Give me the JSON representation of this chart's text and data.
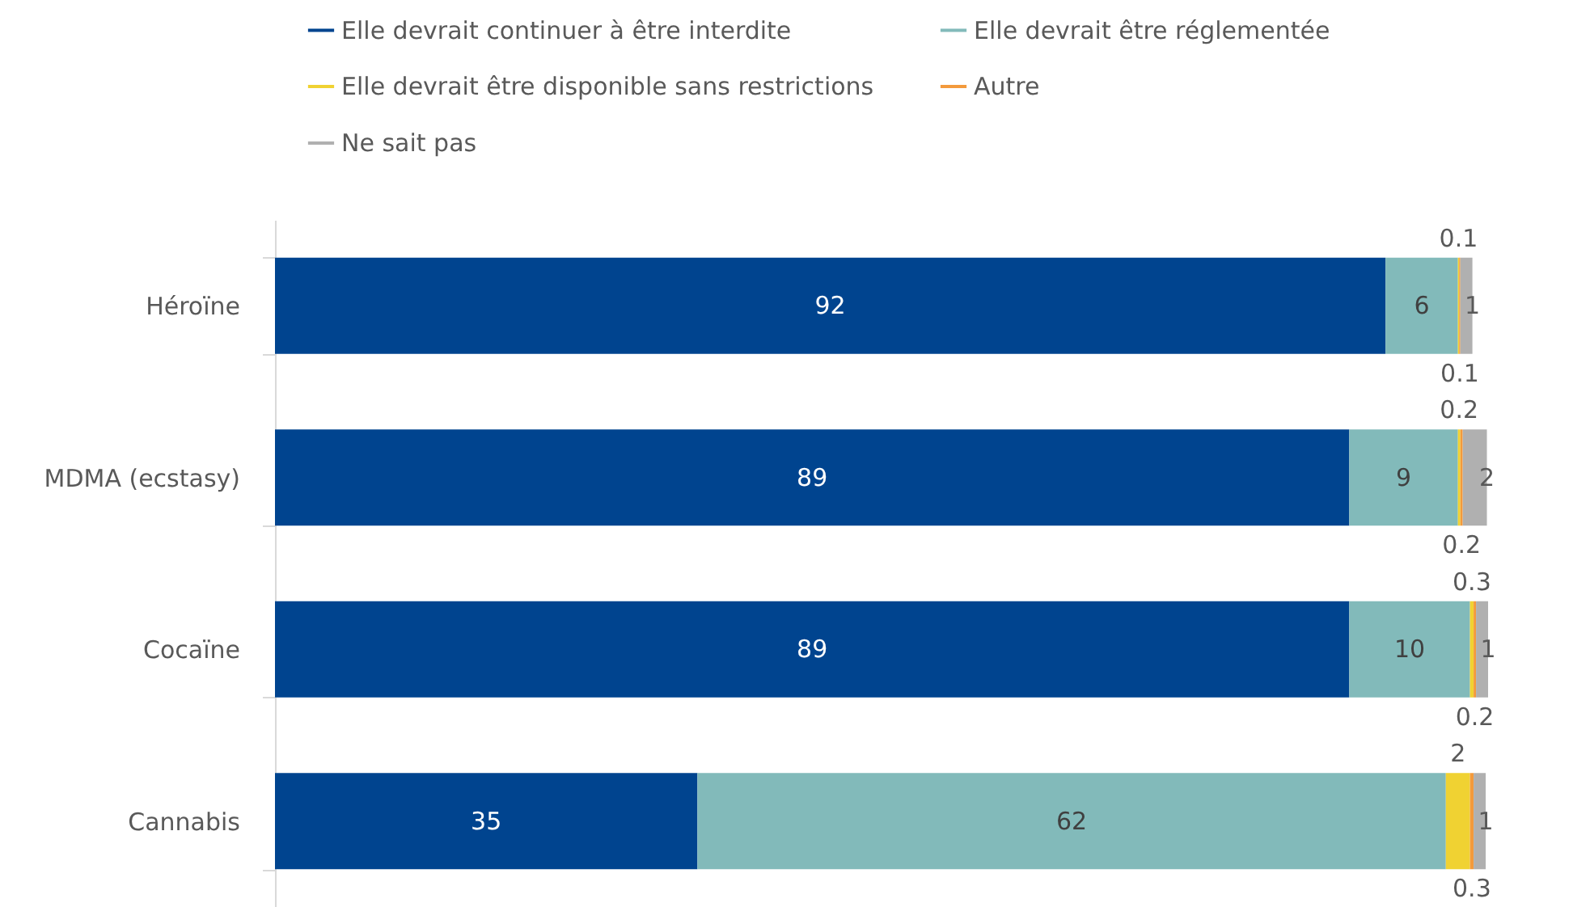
{
  "chart_data": {
    "type": "bar",
    "orientation": "horizontal",
    "stacked": true,
    "data_labels": true,
    "legend": "top",
    "categories": [
      "Héroïne",
      "MDMA (ecstasy)",
      "Cocaïne",
      "Cannabis"
    ],
    "series": [
      {
        "name": "Elle devrait continuer à être interdite",
        "color": "#00448f",
        "values": [
          92,
          89,
          89,
          35
        ]
      },
      {
        "name": "Elle devrait être réglementée",
        "color": "#82baba",
        "values": [
          6,
          9,
          10,
          62
        ]
      },
      {
        "name": "Elle devrait être disponible sans restrictions",
        "color": "#f0d232",
        "values": [
          0.1,
          0.2,
          0.3,
          2
        ]
      },
      {
        "name": "Autre",
        "color": "#f39a3c",
        "values": [
          0.1,
          0.2,
          0.2,
          0.3
        ]
      },
      {
        "name": "Ne sait pas",
        "color": "#b0b0b0",
        "values": [
          1,
          2,
          1,
          1
        ]
      }
    ]
  }
}
